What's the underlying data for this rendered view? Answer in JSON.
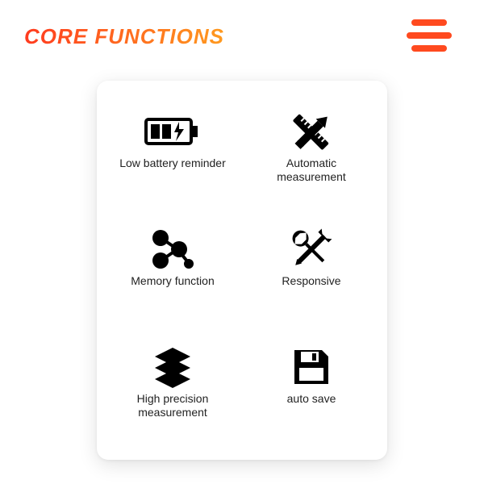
{
  "title": "CORE FUNCTIONS",
  "colors": {
    "gradient_start": "#ff3b1f",
    "gradient_end": "#ff9a1f",
    "menu": "#ff4a1f",
    "icon": "#000000",
    "card_bg": "#ffffff",
    "text": "#222222"
  },
  "features": [
    {
      "icon": "battery",
      "label": "Low battery reminder"
    },
    {
      "icon": "measure",
      "label": "Automatic\nmeasurement"
    },
    {
      "icon": "memory",
      "label": "Memory function"
    },
    {
      "icon": "tools",
      "label": "Responsive"
    },
    {
      "icon": "layers",
      "label": "High precision\nmeasurement"
    },
    {
      "icon": "save",
      "label": "auto save"
    }
  ]
}
